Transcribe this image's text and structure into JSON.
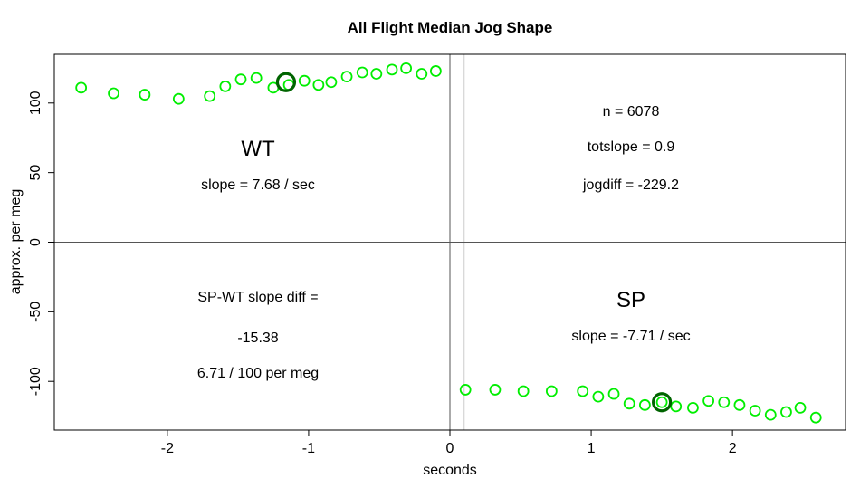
{
  "chart_data": {
    "type": "scatter",
    "title": "All Flight Median Jog Shape",
    "xlabel": "seconds",
    "ylabel": "approx. per meg",
    "xlim": [
      -2.8,
      2.8
    ],
    "ylim": [
      -135,
      135
    ],
    "xticks": [
      -2,
      -1,
      0,
      1,
      2
    ],
    "yticks": [
      -100,
      -50,
      0,
      50,
      100
    ],
    "xtick_labels": [
      "-2",
      "-1",
      "0",
      "1",
      "2"
    ],
    "ytick_labels": [
      "-100",
      "-50",
      "0",
      "50",
      "100"
    ],
    "grid": false,
    "reference_lines": {
      "x": 0,
      "y": 0,
      "x_light": 0.1
    },
    "series": [
      {
        "color": "#00ee00",
        "points": [
          [
            -2.61,
            111
          ],
          [
            -2.38,
            107
          ],
          [
            -2.16,
            106
          ],
          [
            -1.92,
            103
          ],
          [
            -1.7,
            105
          ],
          [
            -1.59,
            112
          ],
          [
            -1.48,
            117
          ],
          [
            -1.37,
            118
          ],
          [
            -1.25,
            111
          ],
          [
            -1.14,
            113
          ],
          [
            -1.03,
            116
          ],
          [
            -0.93,
            113
          ],
          [
            -0.84,
            115
          ],
          [
            -0.73,
            119
          ],
          [
            -0.62,
            122
          ],
          [
            -0.52,
            121
          ],
          [
            -0.41,
            124
          ],
          [
            -0.31,
            125
          ],
          [
            -0.2,
            121
          ],
          [
            -0.1,
            123
          ],
          [
            0.11,
            -106
          ],
          [
            0.32,
            -106
          ],
          [
            0.52,
            -107
          ],
          [
            0.72,
            -107
          ],
          [
            0.94,
            -107
          ],
          [
            1.05,
            -111
          ],
          [
            1.16,
            -109
          ],
          [
            1.27,
            -116
          ],
          [
            1.38,
            -117
          ],
          [
            1.5,
            -115
          ],
          [
            1.6,
            -118
          ],
          [
            1.72,
            -119
          ],
          [
            1.83,
            -114
          ],
          [
            1.94,
            -115
          ],
          [
            2.05,
            -117
          ],
          [
            2.16,
            -121
          ],
          [
            2.27,
            -124
          ],
          [
            2.38,
            -122
          ],
          [
            2.48,
            -119
          ],
          [
            2.59,
            -126
          ]
        ]
      },
      {
        "color": "#006400",
        "points": [
          [
            -1.16,
            115
          ],
          [
            1.5,
            -115
          ]
        ]
      }
    ],
    "annotations": {
      "wt_label": "WT",
      "wt_slope": "slope = 7.68 / sec",
      "n": "n = 6078",
      "totslope": "totslope = 0.9",
      "jogdiff": "jogdiff = -229.2",
      "diff_label": "SP-WT slope diff =",
      "diff_value": "-15.38",
      "diff_per": "6.71 / 100 per meg",
      "sp_label": "SP",
      "sp_slope": "slope = -7.71 / sec"
    }
  }
}
